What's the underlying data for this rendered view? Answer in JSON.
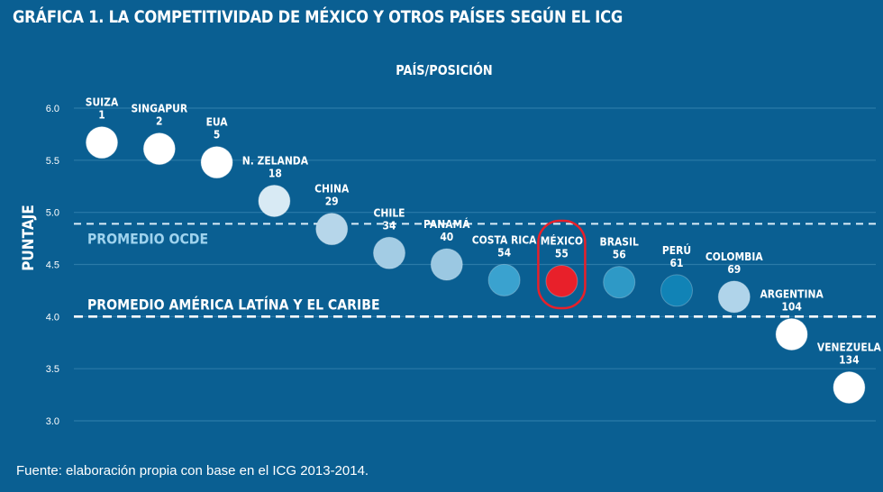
{
  "title": "GRÁFICA 1. LA COMPETITIVIDAD DE MÉXICO Y OTROS PAÍSES SEGÚN EL ICG",
  "source": "Fuente: elaboración propia con base en el ICG 2013-2014.",
  "colors": {
    "background": "#0a5f92",
    "gridline": "#2b7aa8",
    "highlight": "#e8202a",
    "highlight_ring": "#e8202a",
    "oecd_label": "#9fd3ee"
  },
  "chart_data": {
    "type": "scatter",
    "xlabel": "PAÍS/POSICIÓN",
    "ylabel": "PUNTAJE",
    "ylim": [
      3.0,
      6.0
    ],
    "yticks": [
      "6.0",
      "5.5",
      "5.0",
      "4.5",
      "4.0",
      "3.5",
      "3.0"
    ],
    "grid": true,
    "points": [
      {
        "country": "SUIZA",
        "rank": "1",
        "score": 5.67,
        "color": "#ffffff"
      },
      {
        "country": "SINGAPUR",
        "rank": "2",
        "score": 5.61,
        "color": "#ffffff"
      },
      {
        "country": "EUA",
        "rank": "5",
        "score": 5.48,
        "color": "#ffffff"
      },
      {
        "country": "N. ZELANDA",
        "rank": "18",
        "score": 5.11,
        "color": "#d8eaf4"
      },
      {
        "country": "CHINA",
        "rank": "29",
        "score": 4.84,
        "color": "#b6d6ea"
      },
      {
        "country": "CHILE",
        "rank": "34",
        "score": 4.61,
        "color": "#a3cce4"
      },
      {
        "country": "PANAMÁ",
        "rank": "40",
        "score": 4.5,
        "color": "#9bc8e2"
      },
      {
        "country": "COSTA RICA",
        "rank": "54",
        "score": 4.35,
        "color": "#3aa2cf"
      },
      {
        "country": "MÉXICO",
        "rank": "55",
        "score": 4.34,
        "color": "#e8202a",
        "highlight": true
      },
      {
        "country": "BRASIL",
        "rank": "56",
        "score": 4.33,
        "color": "#2e99c6"
      },
      {
        "country": "PERÚ",
        "rank": "61",
        "score": 4.25,
        "color": "#1183b6"
      },
      {
        "country": "COLOMBIA",
        "rank": "69",
        "score": 4.19,
        "color": "#b0d4ea"
      },
      {
        "country": "ARGENTINA",
        "rank": "104",
        "score": 3.83,
        "color": "#ffffff"
      },
      {
        "country": "VENEZUELA",
        "rank": "134",
        "score": 3.32,
        "color": "#ffffff"
      }
    ],
    "reference_lines": [
      {
        "label": "PROMEDIO OCDE",
        "value": 4.89,
        "color": "#d9ecf7"
      },
      {
        "label": "PROMEDIO AMÉRICA LATÍNA Y EL CARIBE",
        "value": 4.0,
        "color": "#ffffff"
      }
    ]
  }
}
